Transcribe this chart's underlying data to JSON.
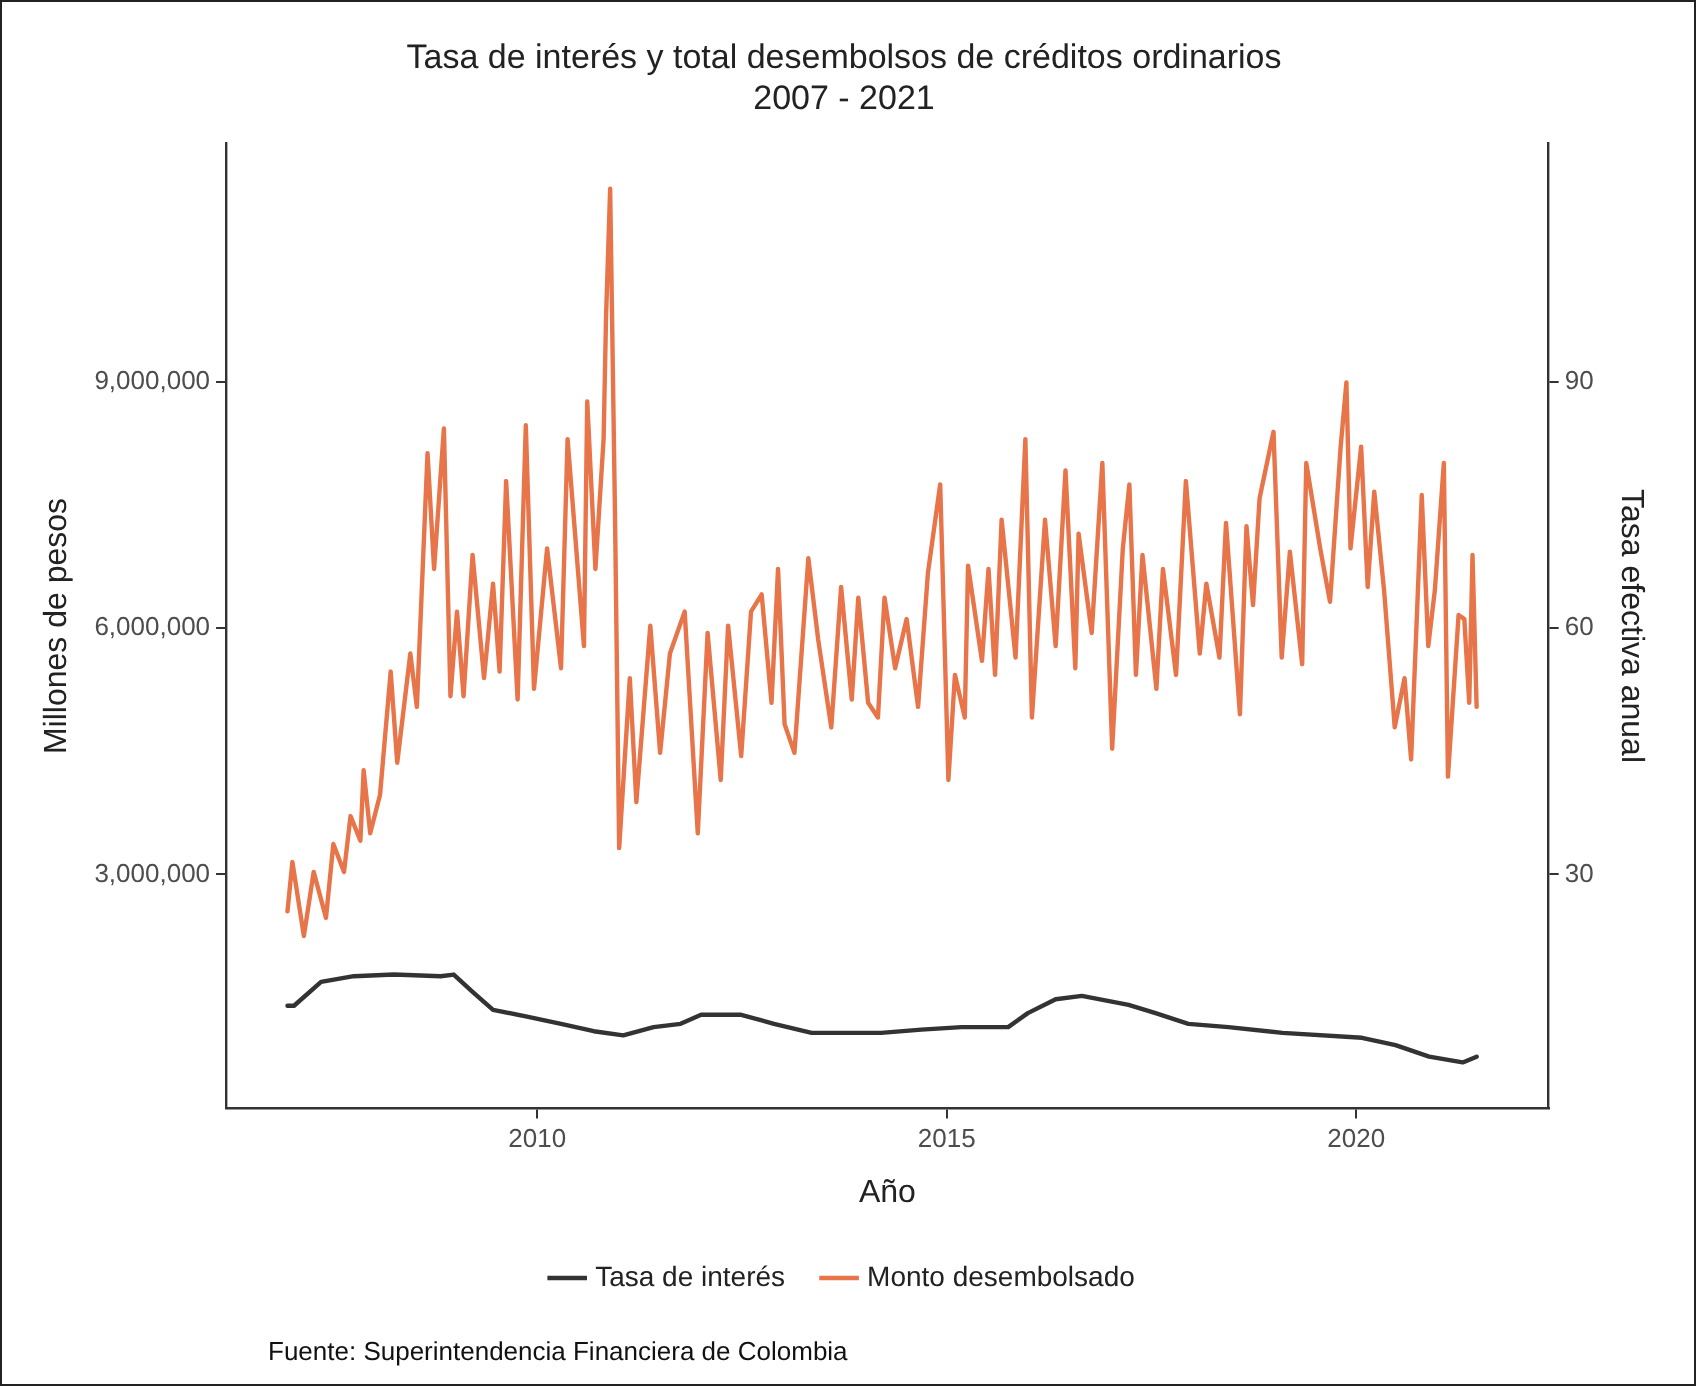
{
  "chart_data": {
    "type": "line",
    "title": "Tasa de interés y total desembolsos de créditos ordinarios\n2007 - 2021",
    "xlabel": "Año",
    "ylabel": "Millones de pesos",
    "y2label": "Tasa efectiva anual",
    "annotations": [
      "Fuente: Superintendencia Financiera de Colombia"
    ],
    "xlim": [
      2006.2,
      2022.35
    ],
    "xticks": [
      2010,
      2015,
      2020
    ],
    "ylim": [
      150000,
      11900000
    ],
    "yticks": [
      {
        "value": 3000000,
        "label": "3,000,000"
      },
      {
        "value": 6000000,
        "label": "6,000,000"
      },
      {
        "value": 9000000,
        "label": "9,000,000"
      }
    ],
    "y2lim": [
      1.5,
      119
    ],
    "y2ticks": [
      30,
      60,
      90
    ],
    "grid": false,
    "legend": "bottom",
    "marker": "none",
    "line_style": "solid",
    "series": [
      {
        "name": "Tasa de interés",
        "color": "#333333",
        "axis": "y2",
        "x": [
          2006.95,
          2007.03,
          2007.36,
          2007.76,
          2008.25,
          2008.82,
          2008.98,
          2009.21,
          2009.46,
          2009.86,
          2010.29,
          2010.69,
          2011.05,
          2011.42,
          2011.75,
          2012.0,
          2012.49,
          2012.89,
          2013.35,
          2013.71,
          2014.2,
          2014.69,
          2015.18,
          2015.75,
          2015.99,
          2016.33,
          2016.65,
          2017.22,
          2017.55,
          2017.95,
          2018.44,
          2019.1,
          2020.07,
          2020.48,
          2020.89,
          2021.3,
          2021.47
        ],
        "values": [
          14.0,
          14.0,
          16.9,
          17.6,
          17.8,
          17.6,
          17.8,
          15.7,
          13.5,
          12.7,
          11.8,
          10.9,
          10.4,
          11.4,
          11.8,
          12.9,
          12.9,
          11.8,
          10.7,
          10.7,
          10.7,
          11.1,
          11.4,
          11.4,
          13.1,
          14.8,
          15.2,
          14.1,
          13.1,
          11.8,
          11.4,
          10.7,
          10.1,
          9.2,
          7.8,
          7.1,
          7.8
        ]
      },
      {
        "name": "Monto desembolsado",
        "color": "#e8744a",
        "x": [
          2006.95,
          2007.01,
          2007.15,
          2007.27,
          2007.42,
          2007.51,
          2007.64,
          2007.72,
          2007.84,
          2007.88,
          2007.96,
          2008.08,
          2008.21,
          2008.29,
          2008.45,
          2008.53,
          2008.66,
          2008.74,
          2008.86,
          2008.94,
          2009.02,
          2009.1,
          2009.21,
          2009.35,
          2009.46,
          2009.54,
          2009.62,
          2009.76,
          2009.86,
          2009.96,
          2010.12,
          2010.29,
          2010.37,
          2010.57,
          2010.61,
          2010.71,
          2010.81,
          2010.84,
          2010.89,
          2010.95,
          2011.0,
          2011.13,
          2011.21,
          2011.38,
          2011.5,
          2011.62,
          2011.8,
          2011.96,
          2012.08,
          2012.24,
          2012.33,
          2012.49,
          2012.61,
          2012.74,
          2012.86,
          2012.94,
          2013.02,
          2013.14,
          2013.31,
          2013.43,
          2013.59,
          2013.71,
          2013.84,
          2013.92,
          2014.04,
          2014.16,
          2014.24,
          2014.37,
          2014.51,
          2014.65,
          2014.77,
          2014.92,
          2015.02,
          2015.1,
          2015.22,
          2015.26,
          2015.43,
          2015.51,
          2015.59,
          2015.67,
          2015.84,
          2015.96,
          2016.04,
          2016.2,
          2016.33,
          2016.45,
          2016.57,
          2016.61,
          2016.77,
          2016.9,
          2017.02,
          2017.15,
          2017.23,
          2017.31,
          2017.39,
          2017.56,
          2017.64,
          2017.8,
          2017.92,
          2018.09,
          2018.17,
          2018.33,
          2018.41,
          2018.58,
          2018.66,
          2018.74,
          2018.82,
          2018.99,
          2019.09,
          2019.19,
          2019.34,
          2019.39,
          2019.56,
          2019.68,
          2019.81,
          2019.88,
          2019.93,
          2020.06,
          2020.14,
          2020.22,
          2020.34,
          2020.47,
          2020.59,
          2020.67,
          2020.8,
          2020.88,
          2020.96,
          2021.07,
          2021.12,
          2021.25,
          2021.32,
          2021.38,
          2021.42,
          2021.47
        ],
        "values": [
          2550000,
          3150000,
          2250000,
          3030000,
          2470000,
          3370000,
          3030000,
          3710000,
          3410000,
          4270000,
          3500000,
          3970000,
          5470000,
          4360000,
          5690000,
          5040000,
          8130000,
          6720000,
          8430000,
          5170000,
          6200000,
          5170000,
          6890000,
          5390000,
          6540000,
          5470000,
          7790000,
          5130000,
          8470000,
          5260000,
          6970000,
          5510000,
          8300000,
          5780000,
          8760000,
          6720000,
          8300000,
          9800000,
          11350000,
          7320000,
          3320000,
          5390000,
          3880000,
          6030000,
          4480000,
          5690000,
          6200000,
          3500000,
          5940000,
          4150000,
          6030000,
          4440000,
          6200000,
          6410000,
          5090000,
          6720000,
          4830000,
          4480000,
          6850000,
          5860000,
          4790000,
          6500000,
          5130000,
          6370000,
          5090000,
          4910000,
          6370000,
          5510000,
          6110000,
          5040000,
          6670000,
          7750000,
          4150000,
          5430000,
          4910000,
          6760000,
          5600000,
          6720000,
          5430000,
          7320000,
          5640000,
          8300000,
          4910000,
          7320000,
          5780000,
          7920000,
          5510000,
          7150000,
          5940000,
          8010000,
          4530000,
          6970000,
          7750000,
          5430000,
          6890000,
          5260000,
          6720000,
          5430000,
          7790000,
          5690000,
          6540000,
          5640000,
          7280000,
          4950000,
          7240000,
          6280000,
          7580000,
          8390000,
          5640000,
          6930000,
          5560000,
          8010000,
          6970000,
          6320000,
          8210000,
          8990000,
          6970000,
          8210000,
          6500000,
          7660000,
          6460000,
          4790000,
          5390000,
          4400000,
          7620000,
          5780000,
          6460000,
          8010000,
          4190000,
          6160000,
          6110000,
          5090000,
          6890000,
          5040000
        ]
      }
    ]
  }
}
